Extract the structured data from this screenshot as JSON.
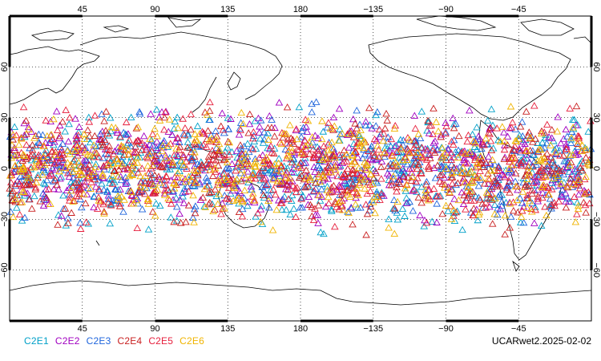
{
  "map": {
    "top_lon_labels": [
      "45",
      "90",
      "135",
      "180",
      "−135",
      "−90",
      "−45"
    ],
    "bottom_lon_labels": [
      "45",
      "90",
      "135",
      "180",
      "−135",
      "−90",
      "−45"
    ],
    "left_lat_labels": [
      "60",
      "30",
      "0",
      "−30",
      "−60"
    ],
    "right_lat_labels": [
      "60",
      "30",
      "0",
      "−30",
      "−60"
    ],
    "grid": "dotted",
    "frame_color": "#000000",
    "coastline_color": "#000000"
  },
  "legend": [
    {
      "label": "C2E1",
      "color": "#00a0c8"
    },
    {
      "label": "C2E2",
      "color": "#a000c0"
    },
    {
      "label": "C2E3",
      "color": "#1e64dc"
    },
    {
      "label": "C2E4",
      "color": "#c81e1e"
    },
    {
      "label": "C2E5",
      "color": "#e61e3c"
    },
    {
      "label": "C2E6",
      "color": "#f0b400"
    }
  ],
  "stamp": "UCARwet2.2025-02-02",
  "observations": {
    "marker": "open-triangle",
    "lat_range": [
      -45,
      45
    ],
    "lon_range": [
      0,
      360
    ],
    "count_per_series": 420
  }
}
